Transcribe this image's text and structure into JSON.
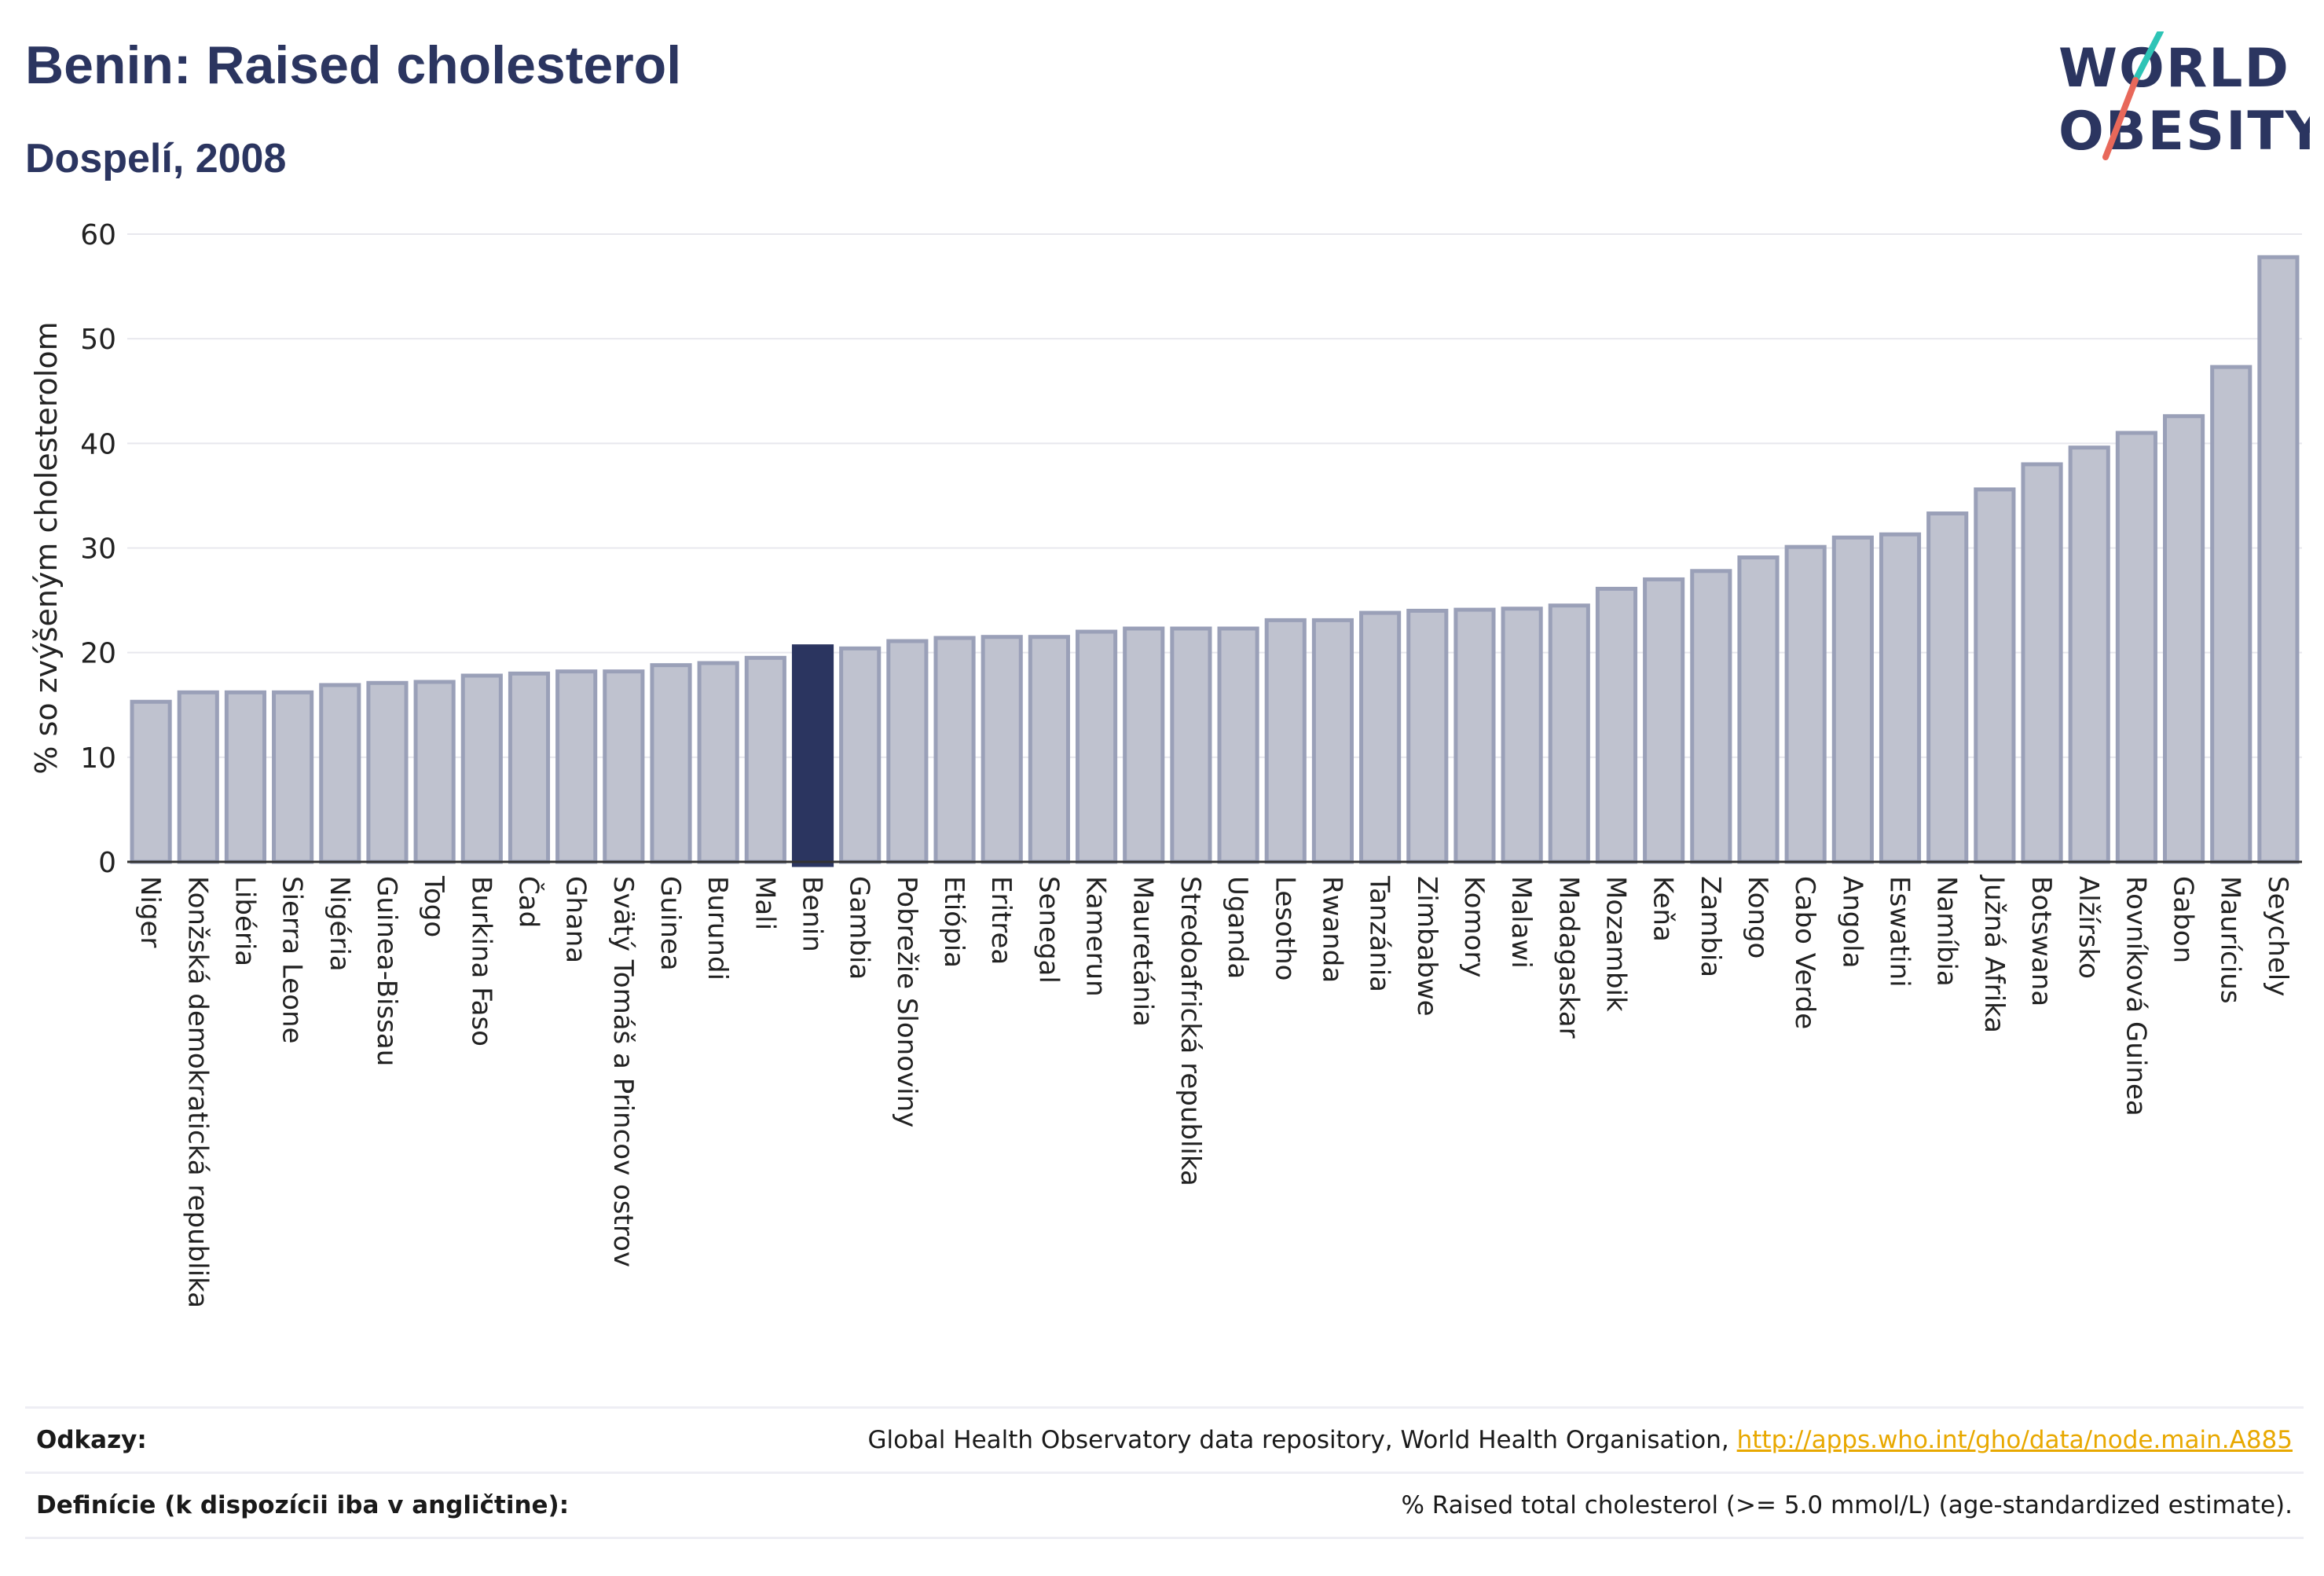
{
  "header": {
    "title": "Benin: Raised cholesterol",
    "subtitle": "Dospelí, 2008"
  },
  "logo": {
    "line1": "WORLD",
    "line2": "OBESITY"
  },
  "colors": {
    "bar": "#bfc2cf",
    "bar_stroke": "#9aa0b8",
    "highlight": "#2b3560",
    "title": "#2b3560",
    "link": "#e8a800"
  },
  "chart_data": {
    "type": "bar",
    "ylabel": "% so zvýšeným cholesterolom",
    "ylim": [
      0,
      60
    ],
    "yticks": [
      0,
      10,
      20,
      30,
      40,
      50,
      60
    ],
    "grid": true,
    "highlight": "Benin",
    "categories": [
      "Niger",
      "Konžská demokratická republika",
      "Libéria",
      "Sierra Leone",
      "Nigéria",
      "Guinea-Bissau",
      "Togo",
      "Burkina Faso",
      "Čad",
      "Ghana",
      "Svätý Tomáš a Princov ostrov",
      "Guinea",
      "Burundi",
      "Mali",
      "Benin",
      "Gambia",
      "Pobrežie Slonoviny",
      "Etiópia",
      "Eritrea",
      "Senegal",
      "Kamerun",
      "Mauretánia",
      "Stredoafrická republika",
      "Uganda",
      "Lesotho",
      "Rwanda",
      "Tanzánia",
      "Zimbabwe",
      "Komory",
      "Malawi",
      "Madagaskar",
      "Mozambik",
      "Keňa",
      "Zambia",
      "Kongo",
      "Cabo Verde",
      "Angola",
      "Eswatini",
      "Namíbia",
      "Južná Afrika",
      "Botswana",
      "Alžírsko",
      "Rovníková Guinea",
      "Gabon",
      "Maurícius",
      "Seychely"
    ],
    "values": [
      15.3,
      16.2,
      16.2,
      16.2,
      16.9,
      17.1,
      17.2,
      17.8,
      18.0,
      18.2,
      18.2,
      18.8,
      19.0,
      19.5,
      20.6,
      20.4,
      21.1,
      21.4,
      21.5,
      21.5,
      22.0,
      22.3,
      22.3,
      22.3,
      23.1,
      23.1,
      23.8,
      24.0,
      24.1,
      24.2,
      24.5,
      26.1,
      27.0,
      27.8,
      29.1,
      30.1,
      31.0,
      31.3,
      33.3,
      35.6,
      38.0,
      39.6,
      41.0,
      42.6,
      47.3,
      57.8
    ]
  },
  "footer": {
    "refs_label": "Odkazy:",
    "refs_text": "Global Health Observatory data repository, World Health Organisation, ",
    "refs_link": "http://apps.who.int/gho/data/node.main.A885",
    "defs_label": "Definície (k dispozícii iba v angličtine):",
    "defs_text": "% Raised total cholesterol (>= 5.0 mmol/L) (age-standardized estimate)."
  }
}
